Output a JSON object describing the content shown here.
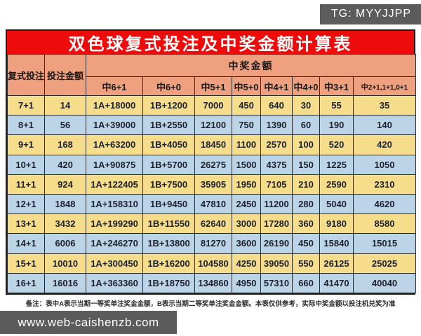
{
  "badge": {
    "text": "TG: MYYJJPP"
  },
  "title": "双色球复式投注及中奖金额计算表",
  "table": {
    "bet_combo_header": "复式投注",
    "bet_amount_header": "投注金额",
    "prize_group_header": "中奖金额",
    "prize_columns": [
      "中6+1",
      "中6+0",
      "中5+1",
      "中5+0",
      "中4+1",
      "中4+0",
      "中3+1",
      "中2+1,1+1,0+1"
    ],
    "rows": [
      [
        "7+1",
        "14",
        "1A+18000",
        "1B+1200",
        "7000",
        "450",
        "640",
        "30",
        "55",
        "35"
      ],
      [
        "8+1",
        "56",
        "1A+39000",
        "1B+2550",
        "12100",
        "750",
        "1390",
        "60",
        "190",
        "140"
      ],
      [
        "9+1",
        "168",
        "1A+63200",
        "1B+4050",
        "18450",
        "1100",
        "2570",
        "100",
        "520",
        "420"
      ],
      [
        "10+1",
        "420",
        "1A+90875",
        "1B+5700",
        "26275",
        "1500",
        "4375",
        "150",
        "1225",
        "1050"
      ],
      [
        "11+1",
        "924",
        "1A+122405",
        "1B+7500",
        "35905",
        "1950",
        "7105",
        "210",
        "2590",
        "2310"
      ],
      [
        "12+1",
        "1848",
        "1A+158310",
        "1B+9450",
        "47810",
        "2450",
        "11200",
        "280",
        "5040",
        "4620"
      ],
      [
        "13+1",
        "3432",
        "1A+199290",
        "1B+11550",
        "62640",
        "3000",
        "17280",
        "360",
        "9180",
        "8580"
      ],
      [
        "14+1",
        "6006",
        "1A+246270",
        "1B+13800",
        "81270",
        "3600",
        "26190",
        "450",
        "15840",
        "15015"
      ],
      [
        "15+1",
        "10010",
        "1A+300450",
        "1B+16200",
        "104580",
        "4250",
        "39050",
        "550",
        "26125",
        "25025"
      ],
      [
        "16+1",
        "16016",
        "1A+363360",
        "1B+18750",
        "134860",
        "4950",
        "57310",
        "660",
        "41470",
        "40040"
      ]
    ]
  },
  "footnote": "备注：表中A表示当期一等奖单注奖金金额，B表示当期二等奖单注奖金金额。本表仅供参考，实际中奖金额以投注机兑奖为准",
  "watermark": "www.web-caishenzb.com",
  "colors": {
    "banner_red": "#ee0b0c",
    "header_salmon": "#efa07e",
    "row_yellow": "#f6dd8c",
    "row_blue": "#bcd4e8",
    "grid_border": "#2a2a2a",
    "badge_gray": "#5c5c5c",
    "text_dark": "#1d2130"
  }
}
